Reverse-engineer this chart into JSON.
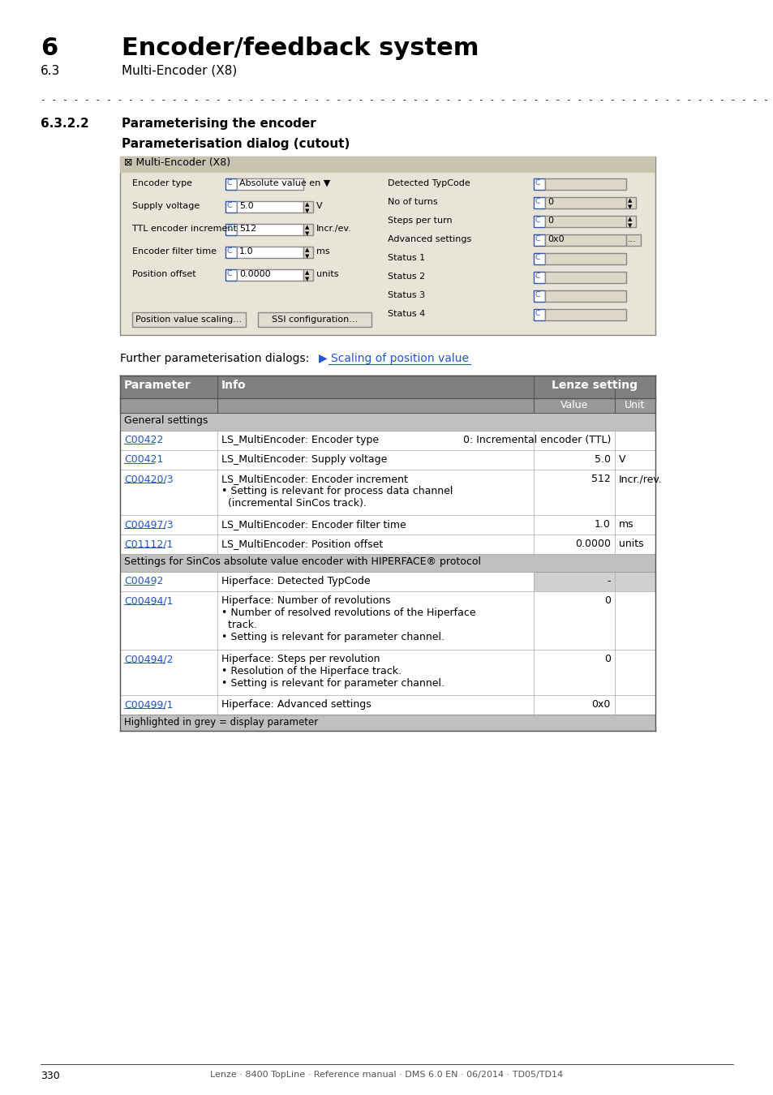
{
  "page_number": "330",
  "footer_text": "Lenze · 8400 TopLine · Reference manual · DMS 6.0 EN · 06/2014 · TD05/TD14",
  "chapter_number": "6",
  "chapter_title": "Encoder/feedback system",
  "section_number": "6.3",
  "section_title": "Multi-Encoder (X8)",
  "subsection_number": "6.3.2.2",
  "subsection_title": "Parameterising the encoder",
  "dialog_subtitle": "Parameterisation dialog (cutout)",
  "further_text": "Further parameterisation dialogs: ▶ Scaling of position value",
  "dialog_title": "Multi-Encoder (X8)",
  "dialog_bg": "#e8e4d8",
  "dialog_header_bg": "#c8c4b0",
  "dialog_border": "#999999",
  "left_fields": [
    {
      "label": "Encoder type",
      "value": "Absolute value en ▼"
    },
    {
      "label": "Supply voltage",
      "value": "5.0",
      "unit": "V"
    },
    {
      "label": "TTL encoder increment",
      "value": "512",
      "unit": "Incr./ev."
    },
    {
      "label": "Encoder filter time",
      "value": "1.0",
      "unit": "ms"
    },
    {
      "label": "Position offset",
      "value": "0.0000",
      "unit": "units"
    }
  ],
  "right_fields": [
    {
      "label": "Detected TypCode",
      "value": ""
    },
    {
      "label": "No of turns",
      "value": "0"
    },
    {
      "label": "Steps per turn",
      "value": "0"
    },
    {
      "label": "Advanced settings",
      "value": "0x0"
    },
    {
      "label": "Status 1",
      "value": ""
    },
    {
      "label": "Status 2",
      "value": ""
    },
    {
      "label": "Status 3",
      "value": ""
    },
    {
      "label": "Status 4",
      "value": ""
    }
  ],
  "buttons": [
    "Position value scaling...",
    "SSI configuration..."
  ],
  "table_columns": [
    "Parameter",
    "Info",
    "Lenze setting"
  ],
  "table_sub_columns": [
    "Value",
    "Unit"
  ],
  "table_header_bg": "#7a7a7a",
  "table_header_text": "#ffffff",
  "table_subheader_bg": "#a0a0a0",
  "table_row_bg_white": "#ffffff",
  "table_row_bg_gray": "#d8d8d8",
  "table_section_bg": "#b8b8b8",
  "table_link_color": "#2255cc",
  "table_rows": [
    {
      "type": "section",
      "text": "General settings"
    },
    {
      "type": "data",
      "param": "C00422",
      "info": "LS_MultiEncoder: Encoder type",
      "value": "0: Incremental encoder (TTL)",
      "unit": "",
      "multiline": false
    },
    {
      "type": "data",
      "param": "C00421",
      "info": "LS_MultiEncoder: Supply voltage",
      "value": "5.0",
      "unit": "V",
      "multiline": false
    },
    {
      "type": "data",
      "param": "C00420/3",
      "info": "LS_MultiEncoder: Encoder increment\n• Setting is relevant for process data channel\n  (incremental SinCos track).",
      "value": "512",
      "unit": "Incr./rev.",
      "multiline": true
    },
    {
      "type": "data",
      "param": "C00497/3",
      "info": "LS_MultiEncoder: Encoder filter time",
      "value": "1.0",
      "unit": "ms",
      "multiline": false
    },
    {
      "type": "data",
      "param": "C01112/1",
      "info": "LS_MultiEncoder: Position offset",
      "value": "0.0000",
      "unit": "units",
      "multiline": false
    },
    {
      "type": "section",
      "text": "Settings for SinCos absolute value encoder with HIPERFACE® protocol"
    },
    {
      "type": "data",
      "param": "C00492",
      "info": "Hiperface: Detected TypCode",
      "value": "-",
      "unit": "",
      "multiline": false,
      "gray_value": true
    },
    {
      "type": "data",
      "param": "C00494/1",
      "info": "Hiperface: Number of revolutions\n• Number of resolved revolutions of the Hiperface\n  track.\n• Setting is relevant for parameter channel.",
      "value": "0",
      "unit": "",
      "multiline": true
    },
    {
      "type": "data",
      "param": "C00494/2",
      "info": "Hiperface: Steps per revolution\n• Resolution of the Hiperface track.\n• Setting is relevant for parameter channel.",
      "value": "0",
      "unit": "",
      "multiline": true
    },
    {
      "type": "data",
      "param": "C00499/1",
      "info": "Hiperface: Advanced settings",
      "value": "0x0",
      "unit": "",
      "multiline": false
    },
    {
      "type": "footer_note",
      "text": "Highlighted in grey = display parameter"
    }
  ]
}
